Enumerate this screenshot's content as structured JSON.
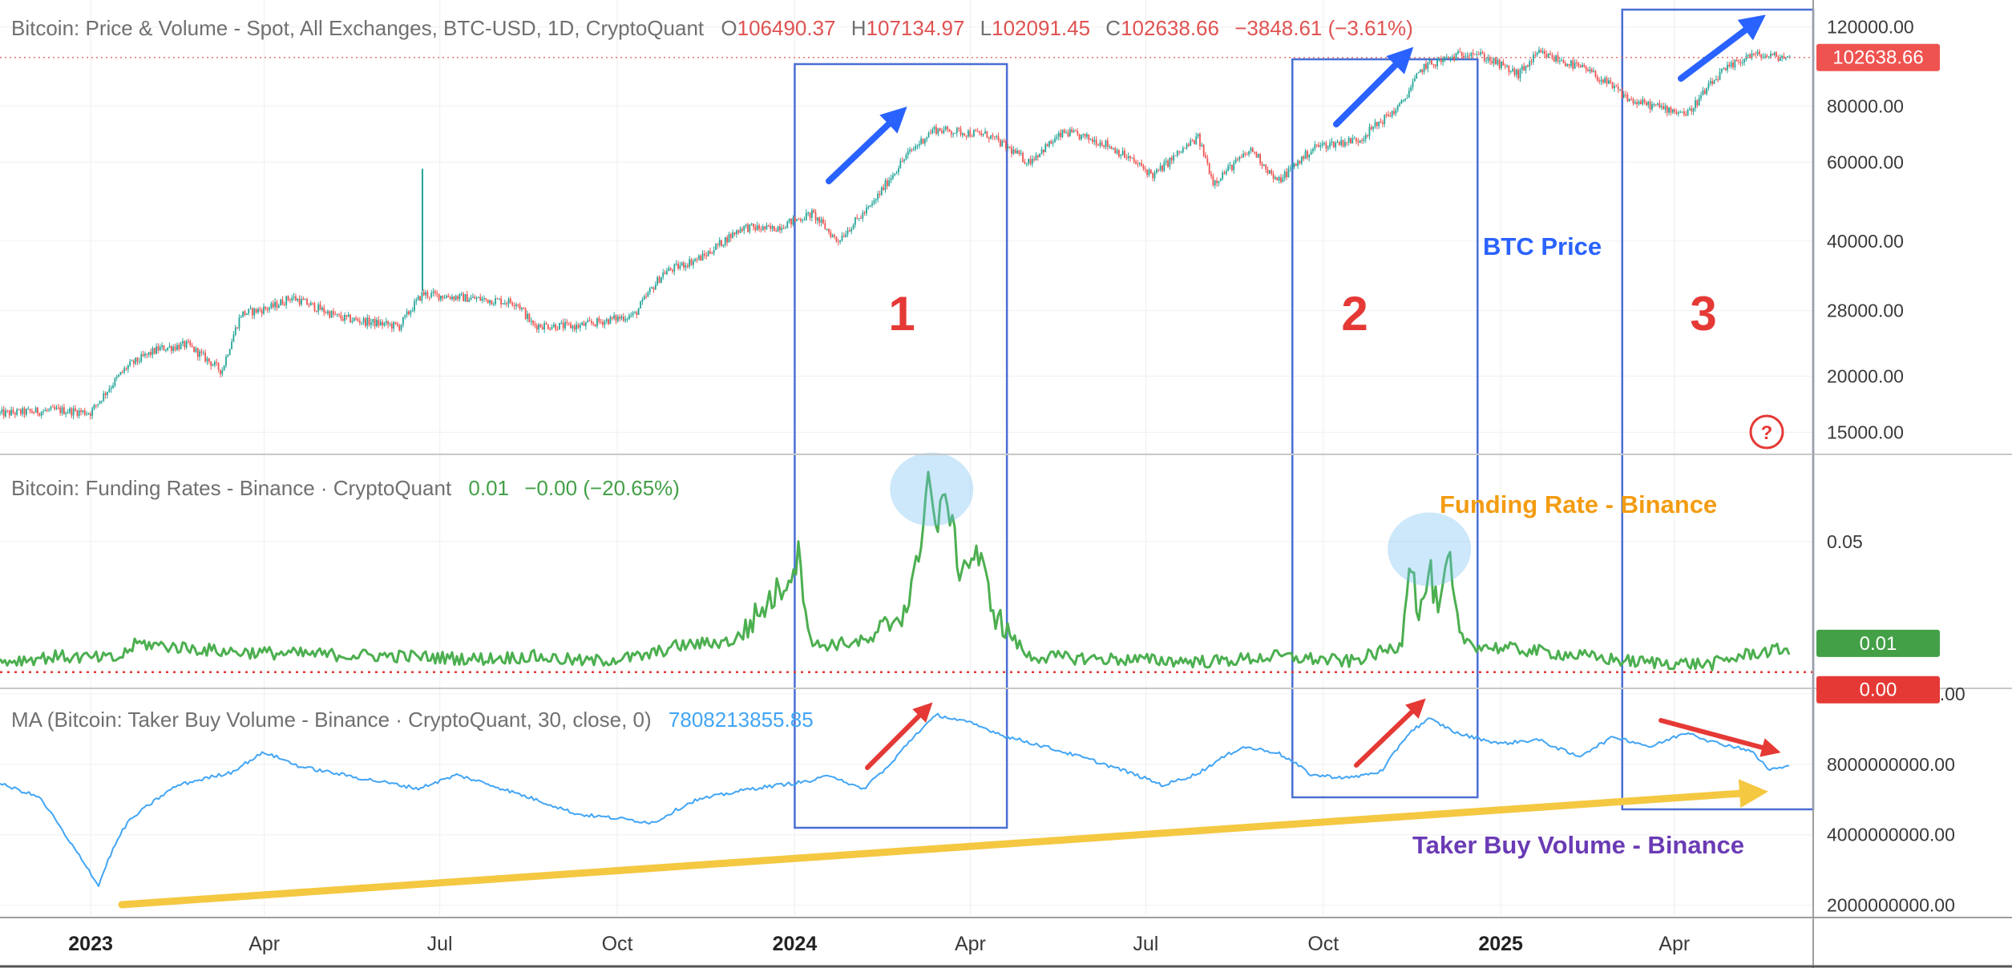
{
  "chart_data": [
    {
      "panel": "price",
      "type": "candlestick",
      "header": {
        "title": "Bitcoin: Price & Volume - Spot, All Exchanges, BTC-USD, 1D, CryptoQuant",
        "o_label": "O",
        "o": "106490.37",
        "h_label": "H",
        "h": "107134.97",
        "l_label": "L",
        "l": "102091.45",
        "c_label": "C",
        "c": "102638.66",
        "change": "−3848.61 (−3.61%)"
      },
      "y_scale": "log",
      "ylim": [
        13500,
        128000
      ],
      "y_ticks": [
        "120000.00",
        "80000.00",
        "60000.00",
        "40000.00",
        "28000.00",
        "20000.00",
        "15000.00"
      ],
      "last_value_badge": "102638.66",
      "annotation": "BTC Price",
      "x": [
        "2022-11-15",
        "2022-12-15",
        "2023-01-01",
        "2023-01-20",
        "2023-02-05",
        "2023-02-20",
        "2023-03-10",
        "2023-03-20",
        "2023-04-05",
        "2023-04-15",
        "2023-05-10",
        "2023-06-10",
        "2023-06-22",
        "2023-07-10",
        "2023-08-10",
        "2023-08-18",
        "2023-09-10",
        "2023-10-10",
        "2023-10-25",
        "2023-11-15",
        "2023-12-05",
        "2023-12-20",
        "2024-01-10",
        "2024-01-23",
        "2024-02-10",
        "2024-02-28",
        "2024-03-13",
        "2024-04-10",
        "2024-05-01",
        "2024-05-20",
        "2024-06-10",
        "2024-07-05",
        "2024-07-28",
        "2024-08-05",
        "2024-08-25",
        "2024-09-07",
        "2024-09-27",
        "2024-10-20",
        "2024-11-10",
        "2024-11-22",
        "2024-12-17",
        "2025-01-10",
        "2025-01-21",
        "2025-02-15",
        "2025-03-10",
        "2025-04-08",
        "2025-04-25",
        "2025-05-10",
        "2025-05-31"
      ],
      "values": [
        16500,
        16800,
        16600,
        21000,
        23000,
        23500,
        20500,
        27500,
        28500,
        30000,
        27000,
        25800,
        30500,
        30000,
        29200,
        26000,
        25800,
        27400,
        34000,
        37000,
        43000,
        42500,
        46000,
        40000,
        48000,
        62000,
        71000,
        69000,
        60000,
        70000,
        66000,
        56000,
        68000,
        54000,
        64000,
        54000,
        65000,
        67500,
        80000,
        98000,
        106000,
        94000,
        105000,
        96000,
        82000,
        77000,
        94500,
        104000,
        102638.66
      ]
    },
    {
      "panel": "funding",
      "type": "line",
      "header": {
        "title": "Bitcoin: Funding Rates - Binance · CryptoQuant",
        "value": "0.01",
        "change": "−0.00 (−20.65%)"
      },
      "ylim": [
        -0.005,
        0.08
      ],
      "y_ticks": [
        "0.05"
      ],
      "last_value_badge": "0.01",
      "zero_badge": "0.00",
      "annotation": "Funding Rate - Binance",
      "x": [
        "2022-11-15",
        "2022-12-15",
        "2023-01-15",
        "2023-01-25",
        "2023-03-10",
        "2023-04-15",
        "2023-06-15",
        "2023-07-20",
        "2023-08-18",
        "2023-09-15",
        "2023-10-15",
        "2023-11-01",
        "2023-12-01",
        "2023-12-28",
        "2024-01-03",
        "2024-01-10",
        "2024-02-10",
        "2024-02-28",
        "2024-03-05",
        "2024-03-10",
        "2024-03-14",
        "2024-03-20",
        "2024-03-26",
        "2024-04-05",
        "2024-04-15",
        "2024-05-01",
        "2024-06-10",
        "2024-08-05",
        "2024-09-07",
        "2024-10-15",
        "2024-11-10",
        "2024-11-15",
        "2024-11-20",
        "2024-11-25",
        "2024-11-30",
        "2024-12-05",
        "2024-12-10",
        "2024-12-20",
        "2025-01-20",
        "2025-03-10",
        "2025-04-20",
        "2025-05-10",
        "2025-05-31"
      ],
      "values": [
        0.004,
        0.006,
        0.005,
        0.011,
        0.008,
        0.007,
        0.006,
        0.005,
        0.006,
        0.004,
        0.006,
        0.01,
        0.012,
        0.035,
        0.045,
        0.01,
        0.012,
        0.025,
        0.042,
        0.077,
        0.055,
        0.068,
        0.04,
        0.045,
        0.02,
        0.006,
        0.005,
        0.004,
        0.006,
        0.004,
        0.01,
        0.046,
        0.02,
        0.04,
        0.02,
        0.045,
        0.014,
        0.01,
        0.008,
        0.004,
        0.003,
        0.007,
        0.009
      ]
    },
    {
      "panel": "volume",
      "type": "line",
      "header": {
        "title": "MA (Bitcoin: Taker Buy Volume - Binance · CryptoQuant, 30, close, 0)",
        "value": "7808213855.85"
      },
      "ylim": [
        1800000000,
        16500000000
      ],
      "y_ticks": [
        "16000000000.00",
        "8000000000.00",
        "4000000000.00",
        "2000000000.00"
      ],
      "annotation": "Taker Buy Volume - Binance",
      "x": [
        "2022-11-15",
        "2022-12-05",
        "2022-12-20",
        "2023-01-05",
        "2023-01-20",
        "2023-02-15",
        "2023-03-15",
        "2023-04-01",
        "2023-04-20",
        "2023-05-20",
        "2023-06-20",
        "2023-07-10",
        "2023-08-10",
        "2023-09-10",
        "2023-10-01",
        "2023-10-20",
        "2023-11-10",
        "2023-12-10",
        "2024-01-10",
        "2024-01-20",
        "2024-02-05",
        "2024-02-20",
        "2024-03-05",
        "2024-03-15",
        "2024-04-01",
        "2024-04-20",
        "2024-05-20",
        "2024-06-20",
        "2024-07-10",
        "2024-07-28",
        "2024-08-20",
        "2024-09-07",
        "2024-09-25",
        "2024-10-15",
        "2024-11-01",
        "2024-11-15",
        "2024-11-25",
        "2024-12-10",
        "2025-01-01",
        "2025-01-20",
        "2025-02-10",
        "2025-03-01",
        "2025-03-20",
        "2025-04-08",
        "2025-04-20",
        "2025-05-10",
        "2025-05-20",
        "2025-05-31"
      ],
      "values": [
        6600000000,
        5800000000,
        3800000000,
        2400000000,
        4500000000,
        6500000000,
        7400000000,
        9000000000,
        7800000000,
        7000000000,
        6300000000,
        7200000000,
        6000000000,
        4900000000,
        4700000000,
        4500000000,
        5600000000,
        6300000000,
        6800000000,
        7200000000,
        6200000000,
        8000000000,
        11000000000,
        13000000000,
        12000000000,
        10500000000,
        9000000000,
        7500000000,
        6500000000,
        7300000000,
        9500000000,
        9000000000,
        7200000000,
        7000000000,
        7500000000,
        11000000000,
        12500000000,
        10800000000,
        9800000000,
        10200000000,
        8600000000,
        10500000000,
        9500000000,
        11000000000,
        10000000000,
        9200000000,
        7600000000,
        7808213855.85
      ]
    }
  ],
  "x_axis": {
    "labels": [
      {
        "date": "2023-01-01",
        "text": "2023",
        "bold": true
      },
      {
        "date": "2023-04-01",
        "text": "Apr",
        "bold": false
      },
      {
        "date": "2023-07-01",
        "text": "Jul",
        "bold": false
      },
      {
        "date": "2023-10-01",
        "text": "Oct",
        "bold": false
      },
      {
        "date": "2024-01-01",
        "text": "2024",
        "bold": true
      },
      {
        "date": "2024-04-01",
        "text": "Apr",
        "bold": false
      },
      {
        "date": "2024-07-01",
        "text": "Jul",
        "bold": false
      },
      {
        "date": "2024-10-01",
        "text": "Oct",
        "bold": false
      },
      {
        "date": "2025-01-01",
        "text": "2025",
        "bold": true
      },
      {
        "date": "2025-04-01",
        "text": "Apr",
        "bold": false
      }
    ]
  },
  "highlight_boxes": [
    {
      "label": "1",
      "start": "2024-01-01",
      "end": "2024-04-20"
    },
    {
      "label": "2",
      "start": "2024-09-15",
      "end": "2024-12-20"
    },
    {
      "label": "3",
      "start": "2025-03-05",
      "end": "2025-06-12"
    }
  ],
  "colors": {
    "up": "#26a69a",
    "down": "#ef5350",
    "funding": "#4caf50",
    "volume": "#42a5f5",
    "box": "#4a6fd4",
    "arrow_price": "#2962ff",
    "arrow_volume": "#e53935",
    "trend": "#f5c842",
    "label_btc": "#2962ff",
    "label_funding": "#f39c12",
    "label_volume": "#6a3bb5"
  }
}
